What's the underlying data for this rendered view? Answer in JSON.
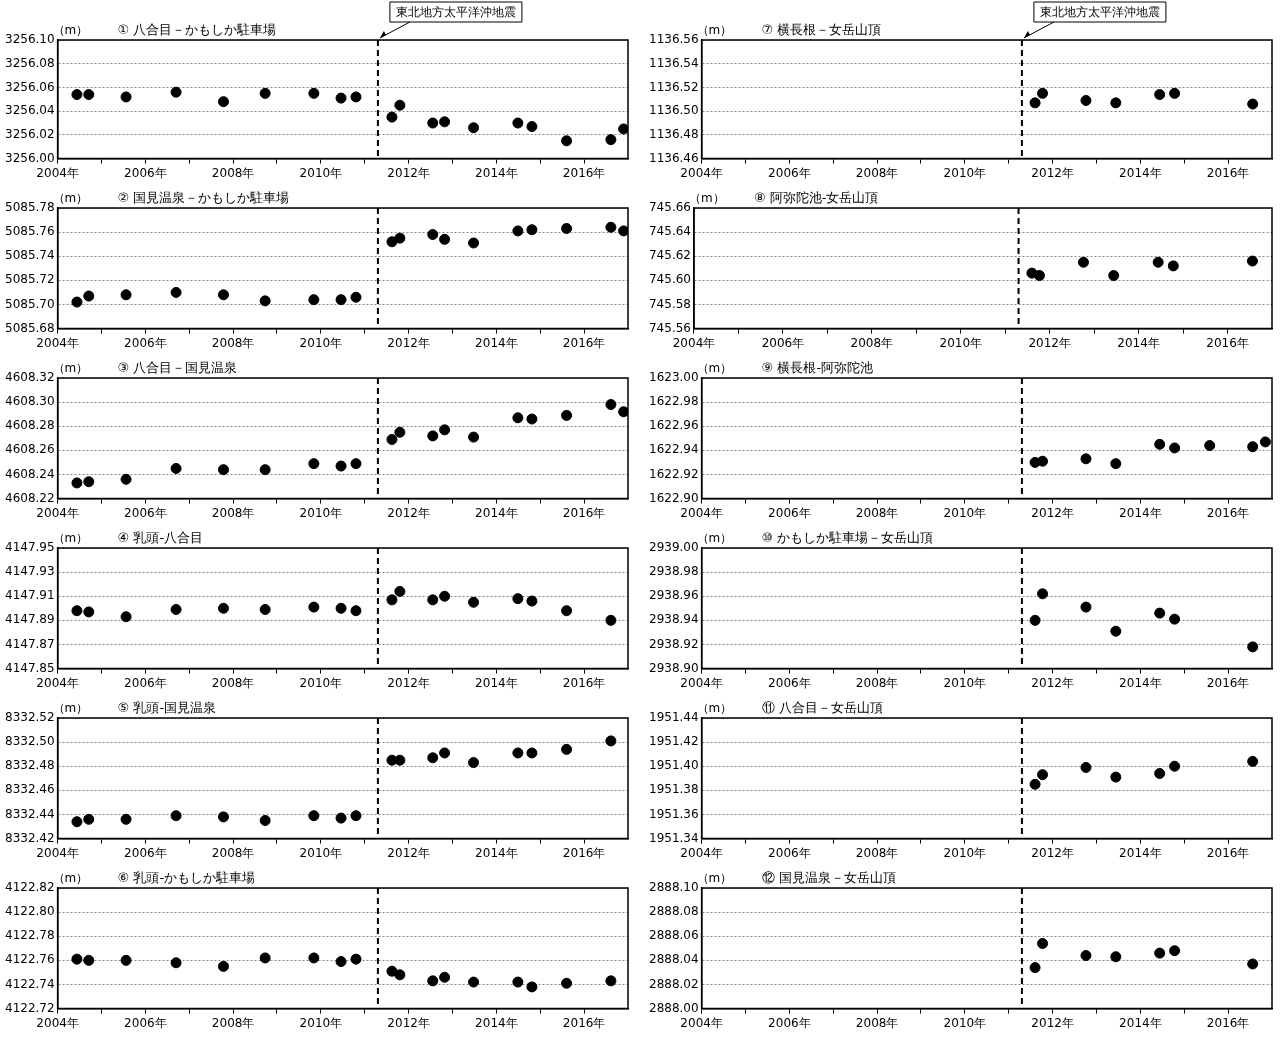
{
  "chart_data": [
    {
      "type": "scatter",
      "title": "① 八合目－かもしか駐車場",
      "ylabel": "（m）",
      "marker": "circle",
      "grid": "y",
      "legend": false,
      "x": [
        2004.44,
        2004.71,
        2005.56,
        2006.7,
        2007.78,
        2008.73,
        2009.84,
        2010.46,
        2010.8,
        2011.62,
        2011.8,
        2012.55,
        2012.82,
        2013.48,
        2014.49,
        2014.81,
        2015.6,
        2016.61,
        2016.9
      ],
      "values": [
        3256.054,
        3256.054,
        3256.052,
        3256.056,
        3256.048,
        3256.055,
        3256.055,
        3256.051,
        3256.052,
        3256.035,
        3256.045,
        3256.03,
        3256.031,
        3256.026,
        3256.03,
        3256.027,
        3256.015,
        3256.016,
        3256.025
      ],
      "color": "#000000",
      "xlim": [
        2004,
        2017
      ],
      "xticks": [
        {
          "value": 2004,
          "label": "2004年"
        },
        {
          "value": 2005,
          "label": null
        },
        {
          "value": 2006,
          "label": "2006年"
        },
        {
          "value": 2007,
          "label": null
        },
        {
          "value": 2008,
          "label": "2008年"
        },
        {
          "value": 2009,
          "label": null
        },
        {
          "value": 2010,
          "label": "2010年"
        },
        {
          "value": 2011,
          "label": null
        },
        {
          "value": 2012,
          "label": "2012年"
        },
        {
          "value": 2013,
          "label": null
        },
        {
          "value": 2014,
          "label": "2014年"
        },
        {
          "value": 2015,
          "label": null
        },
        {
          "value": 2016,
          "label": "2016年"
        }
      ],
      "ylim": [
        3256.0,
        3256.1
      ],
      "yticks": [
        {
          "value": 3256.0,
          "label": "3256.00"
        },
        {
          "value": 3256.02,
          "label": "3256.02"
        },
        {
          "value": 3256.04,
          "label": "3256.04"
        },
        {
          "value": 3256.06,
          "label": "3256.06"
        },
        {
          "value": 3256.08,
          "label": "3256.08"
        },
        {
          "value": 3256.1,
          "label": "3256.10"
        }
      ],
      "ref_lines": [
        {
          "axis": "x",
          "value": 2011.3,
          "label": "東北地方太平洋沖地震",
          "color": "#000000",
          "line_style": "dashed"
        }
      ]
    },
    {
      "type": "scatter",
      "title": "② 国見温泉－かもしか駐車場",
      "ylabel": "（m）",
      "marker": "circle",
      "grid": "y",
      "legend": false,
      "x": [
        2004.44,
        2004.71,
        2005.56,
        2006.7,
        2007.78,
        2008.73,
        2009.84,
        2010.46,
        2010.8,
        2011.62,
        2011.8,
        2012.55,
        2012.82,
        2013.48,
        2014.49,
        2014.81,
        2015.6,
        2016.61,
        2016.9
      ],
      "values": [
        5085.702,
        5085.707,
        5085.708,
        5085.71,
        5085.708,
        5085.703,
        5085.704,
        5085.704,
        5085.706,
        5085.752,
        5085.755,
        5085.758,
        5085.754,
        5085.751,
        5085.761,
        5085.762,
        5085.763,
        5085.764,
        5085.761
      ],
      "color": "#000000",
      "xlim": [
        2004,
        2017
      ],
      "xticks": [
        {
          "value": 2004,
          "label": "2004年"
        },
        {
          "value": 2005,
          "label": null
        },
        {
          "value": 2006,
          "label": "2006年"
        },
        {
          "value": 2007,
          "label": null
        },
        {
          "value": 2008,
          "label": "2008年"
        },
        {
          "value": 2009,
          "label": null
        },
        {
          "value": 2010,
          "label": "2010年"
        },
        {
          "value": 2011,
          "label": null
        },
        {
          "value": 2012,
          "label": "2012年"
        },
        {
          "value": 2013,
          "label": null
        },
        {
          "value": 2014,
          "label": "2014年"
        },
        {
          "value": 2015,
          "label": null
        },
        {
          "value": 2016,
          "label": "2016年"
        }
      ],
      "ylim": [
        5085.68,
        5085.78
      ],
      "yticks": [
        {
          "value": 5085.68,
          "label": "5085.68"
        },
        {
          "value": 5085.7,
          "label": "5085.70"
        },
        {
          "value": 5085.72,
          "label": "5085.72"
        },
        {
          "value": 5085.74,
          "label": "5085.74"
        },
        {
          "value": 5085.76,
          "label": "5085.76"
        },
        {
          "value": 5085.78,
          "label": "5085.78"
        }
      ],
      "ref_lines": [
        {
          "axis": "x",
          "value": 2011.3,
          "color": "#000000",
          "line_style": "dashed"
        }
      ]
    },
    {
      "type": "scatter",
      "title": "③ 八合目－国見温泉",
      "ylabel": "（m）",
      "marker": "circle",
      "grid": "y",
      "legend": false,
      "x": [
        2004.44,
        2004.71,
        2005.56,
        2006.7,
        2007.78,
        2008.73,
        2009.84,
        2010.46,
        2010.8,
        2011.62,
        2011.8,
        2012.55,
        2012.82,
        2013.48,
        2014.49,
        2014.81,
        2015.6,
        2016.61,
        2016.9
      ],
      "values": [
        4608.233,
        4608.234,
        4608.236,
        4608.245,
        4608.244,
        4608.244,
        4608.249,
        4608.247,
        4608.249,
        4608.269,
        4608.275,
        4608.272,
        4608.277,
        4608.271,
        4608.287,
        4608.286,
        4608.289,
        4608.298,
        4608.292
      ],
      "color": "#000000",
      "xlim": [
        2004,
        2017
      ],
      "xticks": [
        {
          "value": 2004,
          "label": "2004年"
        },
        {
          "value": 2005,
          "label": null
        },
        {
          "value": 2006,
          "label": "2006年"
        },
        {
          "value": 2007,
          "label": null
        },
        {
          "value": 2008,
          "label": "2008年"
        },
        {
          "value": 2009,
          "label": null
        },
        {
          "value": 2010,
          "label": "2010年"
        },
        {
          "value": 2011,
          "label": null
        },
        {
          "value": 2012,
          "label": "2012年"
        },
        {
          "value": 2013,
          "label": null
        },
        {
          "value": 2014,
          "label": "2014年"
        },
        {
          "value": 2015,
          "label": null
        },
        {
          "value": 2016,
          "label": "2016年"
        }
      ],
      "ylim": [
        4608.22,
        4608.32
      ],
      "yticks": [
        {
          "value": 4608.22,
          "label": "4608.22"
        },
        {
          "value": 4608.24,
          "label": "4608.24"
        },
        {
          "value": 4608.26,
          "label": "4608.26"
        },
        {
          "value": 4608.28,
          "label": "4608.28"
        },
        {
          "value": 4608.3,
          "label": "4608.30"
        },
        {
          "value": 4608.32,
          "label": "4608.32"
        }
      ],
      "ref_lines": [
        {
          "axis": "x",
          "value": 2011.3,
          "color": "#000000",
          "line_style": "dashed"
        }
      ]
    },
    {
      "type": "scatter",
      "title": "④ 乳頭-八合目",
      "ylabel": "（m）",
      "marker": "circle",
      "grid": "y",
      "legend": false,
      "x": [
        2004.44,
        2004.71,
        2005.56,
        2006.7,
        2007.78,
        2008.73,
        2009.84,
        2010.46,
        2010.8,
        2011.62,
        2011.8,
        2012.55,
        2012.82,
        2013.48,
        2014.49,
        2014.81,
        2015.6,
        2016.61
      ],
      "values": [
        4147.898,
        4147.897,
        4147.893,
        4147.899,
        4147.9,
        4147.899,
        4147.901,
        4147.9,
        4147.898,
        4147.907,
        4147.914,
        4147.907,
        4147.91,
        4147.905,
        4147.908,
        4147.906,
        4147.898,
        4147.89
      ],
      "color": "#000000",
      "xlim": [
        2004,
        2017
      ],
      "xticks": [
        {
          "value": 2004,
          "label": "2004年"
        },
        {
          "value": 2005,
          "label": null
        },
        {
          "value": 2006,
          "label": "2006年"
        },
        {
          "value": 2007,
          "label": null
        },
        {
          "value": 2008,
          "label": "2008年"
        },
        {
          "value": 2009,
          "label": null
        },
        {
          "value": 2010,
          "label": "2010年"
        },
        {
          "value": 2011,
          "label": null
        },
        {
          "value": 2012,
          "label": "2012年"
        },
        {
          "value": 2013,
          "label": null
        },
        {
          "value": 2014,
          "label": "2014年"
        },
        {
          "value": 2015,
          "label": null
        },
        {
          "value": 2016,
          "label": "2016年"
        }
      ],
      "ylim": [
        4147.85,
        4147.95
      ],
      "yticks": [
        {
          "value": 4147.85,
          "label": "4147.85"
        },
        {
          "value": 4147.87,
          "label": "4147.87"
        },
        {
          "value": 4147.89,
          "label": "4147.89"
        },
        {
          "value": 4147.91,
          "label": "4147.91"
        },
        {
          "value": 4147.93,
          "label": "4147.93"
        },
        {
          "value": 4147.95,
          "label": "4147.95"
        }
      ],
      "ref_lines": [
        {
          "axis": "x",
          "value": 2011.3,
          "color": "#000000",
          "line_style": "dashed"
        }
      ]
    },
    {
      "type": "scatter",
      "title": "⑤ 乳頭-国見温泉",
      "ylabel": "（m）",
      "marker": "circle",
      "grid": "y",
      "legend": false,
      "x": [
        2004.44,
        2004.71,
        2005.56,
        2006.7,
        2007.78,
        2008.73,
        2009.84,
        2010.46,
        2010.8,
        2011.62,
        2011.8,
        2012.55,
        2012.82,
        2013.48,
        2014.49,
        2014.81,
        2015.6,
        2016.61
      ],
      "values": [
        8332.434,
        8332.436,
        8332.436,
        8332.439,
        8332.438,
        8332.435,
        8332.439,
        8332.437,
        8332.439,
        8332.485,
        8332.485,
        8332.487,
        8332.491,
        8332.483,
        8332.491,
        8332.491,
        8332.494,
        8332.501
      ],
      "color": "#000000",
      "xlim": [
        2004,
        2017
      ],
      "xticks": [
        {
          "value": 2004,
          "label": "2004年"
        },
        {
          "value": 2005,
          "label": null
        },
        {
          "value": 2006,
          "label": "2006年"
        },
        {
          "value": 2007,
          "label": null
        },
        {
          "value": 2008,
          "label": "2008年"
        },
        {
          "value": 2009,
          "label": null
        },
        {
          "value": 2010,
          "label": "2010年"
        },
        {
          "value": 2011,
          "label": null
        },
        {
          "value": 2012,
          "label": "2012年"
        },
        {
          "value": 2013,
          "label": null
        },
        {
          "value": 2014,
          "label": "2014年"
        },
        {
          "value": 2015,
          "label": null
        },
        {
          "value": 2016,
          "label": "2016年"
        }
      ],
      "ylim": [
        8332.42,
        8332.52
      ],
      "yticks": [
        {
          "value": 8332.42,
          "label": "8332.42"
        },
        {
          "value": 8332.44,
          "label": "8332.44"
        },
        {
          "value": 8332.46,
          "label": "8332.46"
        },
        {
          "value": 8332.48,
          "label": "8332.48"
        },
        {
          "value": 8332.5,
          "label": "8332.50"
        },
        {
          "value": 8332.52,
          "label": "8332.52"
        }
      ],
      "ref_lines": [
        {
          "axis": "x",
          "value": 2011.3,
          "color": "#000000",
          "line_style": "dashed"
        }
      ]
    },
    {
      "type": "scatter",
      "title": "⑥ 乳頭-かもしか駐車場",
      "ylabel": "（m）",
      "marker": "circle",
      "grid": "y",
      "legend": false,
      "x": [
        2004.44,
        2004.71,
        2005.56,
        2006.7,
        2007.78,
        2008.73,
        2009.84,
        2010.46,
        2010.8,
        2011.62,
        2011.8,
        2012.55,
        2012.82,
        2013.48,
        2014.49,
        2014.81,
        2015.6,
        2016.61
      ],
      "values": [
        4122.761,
        4122.76,
        4122.76,
        4122.758,
        4122.755,
        4122.762,
        4122.762,
        4122.759,
        4122.761,
        4122.751,
        4122.748,
        4122.743,
        4122.746,
        4122.742,
        4122.742,
        4122.738,
        4122.741,
        4122.743
      ],
      "color": "#000000",
      "xlim": [
        2004,
        2017
      ],
      "xticks": [
        {
          "value": 2004,
          "label": "2004年"
        },
        {
          "value": 2005,
          "label": null
        },
        {
          "value": 2006,
          "label": "2006年"
        },
        {
          "value": 2007,
          "label": null
        },
        {
          "value": 2008,
          "label": "2008年"
        },
        {
          "value": 2009,
          "label": null
        },
        {
          "value": 2010,
          "label": "2010年"
        },
        {
          "value": 2011,
          "label": null
        },
        {
          "value": 2012,
          "label": "2012年"
        },
        {
          "value": 2013,
          "label": null
        },
        {
          "value": 2014,
          "label": "2014年"
        },
        {
          "value": 2015,
          "label": null
        },
        {
          "value": 2016,
          "label": "2016年"
        }
      ],
      "ylim": [
        4122.72,
        4122.82
      ],
      "yticks": [
        {
          "value": 4122.72,
          "label": "4122.72"
        },
        {
          "value": 4122.74,
          "label": "4122.74"
        },
        {
          "value": 4122.76,
          "label": "4122.76"
        },
        {
          "value": 4122.78,
          "label": "4122.78"
        },
        {
          "value": 4122.8,
          "label": "4122.80"
        },
        {
          "value": 4122.82,
          "label": "4122.82"
        }
      ],
      "ref_lines": [
        {
          "axis": "x",
          "value": 2011.3,
          "color": "#000000",
          "line_style": "dashed"
        }
      ]
    },
    {
      "type": "scatter",
      "title": "⑦ 横長根－女岳山頂",
      "ylabel": "（m）",
      "marker": "circle",
      "grid": "y",
      "legend": false,
      "x": [
        2011.6,
        2011.77,
        2012.76,
        2013.44,
        2014.44,
        2014.78,
        2016.56
      ],
      "values": [
        1136.507,
        1136.515,
        1136.509,
        1136.507,
        1136.514,
        1136.515,
        1136.506
      ],
      "color": "#000000",
      "xlim": [
        2004,
        2017
      ],
      "xticks": [
        {
          "value": 2004,
          "label": "2004年"
        },
        {
          "value": 2005,
          "label": null
        },
        {
          "value": 2006,
          "label": "2006年"
        },
        {
          "value": 2007,
          "label": null
        },
        {
          "value": 2008,
          "label": "2008年"
        },
        {
          "value": 2009,
          "label": null
        },
        {
          "value": 2010,
          "label": "2010年"
        },
        {
          "value": 2011,
          "label": null
        },
        {
          "value": 2012,
          "label": "2012年"
        },
        {
          "value": 2013,
          "label": null
        },
        {
          "value": 2014,
          "label": "2014年"
        },
        {
          "value": 2015,
          "label": null
        },
        {
          "value": 2016,
          "label": "2016年"
        }
      ],
      "ylim": [
        1136.46,
        1136.56
      ],
      "yticks": [
        {
          "value": 1136.46,
          "label": "1136.46"
        },
        {
          "value": 1136.48,
          "label": "1136.48"
        },
        {
          "value": 1136.5,
          "label": "1136.50"
        },
        {
          "value": 1136.52,
          "label": "1136.52"
        },
        {
          "value": 1136.54,
          "label": "1136.54"
        },
        {
          "value": 1136.56,
          "label": "1136.56"
        }
      ],
      "ref_lines": [
        {
          "axis": "x",
          "value": 2011.3,
          "label": "東北地方太平洋沖地震",
          "color": "#000000",
          "line_style": "dashed"
        }
      ]
    },
    {
      "type": "scatter",
      "title": "⑧ 阿弥陀池-女岳山頂",
      "ylabel": "（m）",
      "marker": "circle",
      "grid": "y",
      "legend": false,
      "x": [
        2011.6,
        2011.77,
        2012.76,
        2013.44,
        2014.44,
        2014.78,
        2016.56
      ],
      "values": [
        745.606,
        745.604,
        745.615,
        745.604,
        745.615,
        745.612,
        745.616
      ],
      "color": "#000000",
      "xlim": [
        2004,
        2017
      ],
      "xticks": [
        {
          "value": 2004,
          "label": "2004年"
        },
        {
          "value": 2005,
          "label": null
        },
        {
          "value": 2006,
          "label": "2006年"
        },
        {
          "value": 2007,
          "label": null
        },
        {
          "value": 2008,
          "label": "2008年"
        },
        {
          "value": 2009,
          "label": null
        },
        {
          "value": 2010,
          "label": "2010年"
        },
        {
          "value": 2011,
          "label": null
        },
        {
          "value": 2012,
          "label": "2012年"
        },
        {
          "value": 2013,
          "label": null
        },
        {
          "value": 2014,
          "label": "2014年"
        },
        {
          "value": 2015,
          "label": null
        },
        {
          "value": 2016,
          "label": "2016年"
        }
      ],
      "ylim": [
        745.56,
        745.66
      ],
      "yticks": [
        {
          "value": 745.56,
          "label": "745.56"
        },
        {
          "value": 745.58,
          "label": "745.58"
        },
        {
          "value": 745.6,
          "label": "745.60"
        },
        {
          "value": 745.62,
          "label": "745.62"
        },
        {
          "value": 745.64,
          "label": "745.64"
        },
        {
          "value": 745.66,
          "label": "745.66"
        }
      ],
      "ref_lines": [
        {
          "axis": "x",
          "value": 2011.3,
          "color": "#000000",
          "line_style": "dashed"
        }
      ]
    },
    {
      "type": "scatter",
      "title": "⑨ 横長根-阿弥陀池",
      "ylabel": "（m）",
      "marker": "circle",
      "grid": "y",
      "legend": false,
      "x": [
        2011.6,
        2011.77,
        2012.76,
        2013.44,
        2014.44,
        2014.78,
        2015.58,
        2016.56,
        2016.85
      ],
      "values": [
        1622.93,
        1622.931,
        1622.933,
        1622.929,
        1622.945,
        1622.942,
        1622.944,
        1622.943,
        1622.947
      ],
      "color": "#000000",
      "xlim": [
        2004,
        2017
      ],
      "xticks": [
        {
          "value": 2004,
          "label": "2004年"
        },
        {
          "value": 2005,
          "label": null
        },
        {
          "value": 2006,
          "label": "2006年"
        },
        {
          "value": 2007,
          "label": null
        },
        {
          "value": 2008,
          "label": "2008年"
        },
        {
          "value": 2009,
          "label": null
        },
        {
          "value": 2010,
          "label": "2010年"
        },
        {
          "value": 2011,
          "label": null
        },
        {
          "value": 2012,
          "label": "2012年"
        },
        {
          "value": 2013,
          "label": null
        },
        {
          "value": 2014,
          "label": "2014年"
        },
        {
          "value": 2015,
          "label": null
        },
        {
          "value": 2016,
          "label": "2016年"
        }
      ],
      "ylim": [
        1622.9,
        1623.0
      ],
      "yticks": [
        {
          "value": 1622.9,
          "label": "1622.90"
        },
        {
          "value": 1622.92,
          "label": "1622.92"
        },
        {
          "value": 1622.94,
          "label": "1622.94"
        },
        {
          "value": 1622.96,
          "label": "1622.96"
        },
        {
          "value": 1622.98,
          "label": "1622.98"
        },
        {
          "value": 1623.0,
          "label": "1623.00"
        }
      ],
      "ref_lines": [
        {
          "axis": "x",
          "value": 2011.3,
          "color": "#000000",
          "line_style": "dashed"
        }
      ]
    },
    {
      "type": "scatter",
      "title": "⑩ かもしか駐車場－女岳山頂",
      "ylabel": "（m）",
      "marker": "circle",
      "grid": "y",
      "legend": false,
      "x": [
        2011.6,
        2011.77,
        2012.76,
        2013.44,
        2014.44,
        2014.78,
        2016.56
      ],
      "values": [
        2938.94,
        2938.962,
        2938.951,
        2938.931,
        2938.946,
        2938.941,
        2938.918
      ],
      "color": "#000000",
      "xlim": [
        2004,
        2017
      ],
      "xticks": [
        {
          "value": 2004,
          "label": "2004年"
        },
        {
          "value": 2005,
          "label": null
        },
        {
          "value": 2006,
          "label": "2006年"
        },
        {
          "value": 2007,
          "label": null
        },
        {
          "value": 2008,
          "label": "2008年"
        },
        {
          "value": 2009,
          "label": null
        },
        {
          "value": 2010,
          "label": "2010年"
        },
        {
          "value": 2011,
          "label": null
        },
        {
          "value": 2012,
          "label": "2012年"
        },
        {
          "value": 2013,
          "label": null
        },
        {
          "value": 2014,
          "label": "2014年"
        },
        {
          "value": 2015,
          "label": null
        },
        {
          "value": 2016,
          "label": "2016年"
        }
      ],
      "ylim": [
        2938.9,
        2939.0
      ],
      "yticks": [
        {
          "value": 2938.9,
          "label": "2938.90"
        },
        {
          "value": 2938.92,
          "label": "2938.92"
        },
        {
          "value": 2938.94,
          "label": "2938.94"
        },
        {
          "value": 2938.96,
          "label": "2938.96"
        },
        {
          "value": 2938.98,
          "label": "2938.98"
        },
        {
          "value": 2939.0,
          "label": "2939.00"
        }
      ],
      "ref_lines": [
        {
          "axis": "x",
          "value": 2011.3,
          "color": "#000000",
          "line_style": "dashed"
        }
      ]
    },
    {
      "type": "scatter",
      "title": "⑪ 八合目－女岳山頂",
      "ylabel": "（m）",
      "marker": "circle",
      "grid": "y",
      "legend": false,
      "x": [
        2011.6,
        2011.77,
        2012.76,
        2013.44,
        2014.44,
        2014.78,
        2016.56
      ],
      "values": [
        1951.385,
        1951.393,
        1951.399,
        1951.391,
        1951.394,
        1951.4,
        1951.404
      ],
      "color": "#000000",
      "xlim": [
        2004,
        2017
      ],
      "xticks": [
        {
          "value": 2004,
          "label": "2004年"
        },
        {
          "value": 2005,
          "label": null
        },
        {
          "value": 2006,
          "label": "2006年"
        },
        {
          "value": 2007,
          "label": null
        },
        {
          "value": 2008,
          "label": "2008年"
        },
        {
          "value": 2009,
          "label": null
        },
        {
          "value": 2010,
          "label": "2010年"
        },
        {
          "value": 2011,
          "label": null
        },
        {
          "value": 2012,
          "label": "2012年"
        },
        {
          "value": 2013,
          "label": null
        },
        {
          "value": 2014,
          "label": "2014年"
        },
        {
          "value": 2015,
          "label": null
        },
        {
          "value": 2016,
          "label": "2016年"
        }
      ],
      "ylim": [
        1951.34,
        1951.44
      ],
      "yticks": [
        {
          "value": 1951.34,
          "label": "1951.34"
        },
        {
          "value": 1951.36,
          "label": "1951.36"
        },
        {
          "value": 1951.38,
          "label": "1951.38"
        },
        {
          "value": 1951.4,
          "label": "1951.40"
        },
        {
          "value": 1951.42,
          "label": "1951.42"
        },
        {
          "value": 1951.44,
          "label": "1951.44"
        }
      ],
      "ref_lines": [
        {
          "axis": "x",
          "value": 2011.3,
          "color": "#000000",
          "line_style": "dashed"
        }
      ]
    },
    {
      "type": "scatter",
      "title": "⑫ 国見温泉－女岳山頂",
      "ylabel": "（m）",
      "marker": "circle",
      "grid": "y",
      "legend": false,
      "x": [
        2011.6,
        2011.77,
        2012.76,
        2013.44,
        2014.44,
        2014.78,
        2016.56
      ],
      "values": [
        2888.034,
        2888.054,
        2888.044,
        2888.043,
        2888.046,
        2888.048,
        2888.037
      ],
      "color": "#000000",
      "xlim": [
        2004,
        2017
      ],
      "xticks": [
        {
          "value": 2004,
          "label": "2004年"
        },
        {
          "value": 2005,
          "label": null
        },
        {
          "value": 2006,
          "label": "2006年"
        },
        {
          "value": 2007,
          "label": null
        },
        {
          "value": 2008,
          "label": "2008年"
        },
        {
          "value": 2009,
          "label": null
        },
        {
          "value": 2010,
          "label": "2010年"
        },
        {
          "value": 2011,
          "label": null
        },
        {
          "value": 2012,
          "label": "2012年"
        },
        {
          "value": 2013,
          "label": null
        },
        {
          "value": 2014,
          "label": "2014年"
        },
        {
          "value": 2015,
          "label": null
        },
        {
          "value": 2016,
          "label": "2016年"
        }
      ],
      "ylim": [
        2888.0,
        2888.1
      ],
      "yticks": [
        {
          "value": 2888.0,
          "label": "2888.00"
        },
        {
          "value": 2888.02,
          "label": "2888.02"
        },
        {
          "value": 2888.04,
          "label": "2888.04"
        },
        {
          "value": 2888.06,
          "label": "2888.06"
        },
        {
          "value": 2888.08,
          "label": "2888.08"
        },
        {
          "value": 2888.1,
          "label": "2888.10"
        }
      ],
      "ref_lines": [
        {
          "axis": "x",
          "value": 2011.3,
          "color": "#000000",
          "line_style": "dashed"
        }
      ]
    }
  ]
}
